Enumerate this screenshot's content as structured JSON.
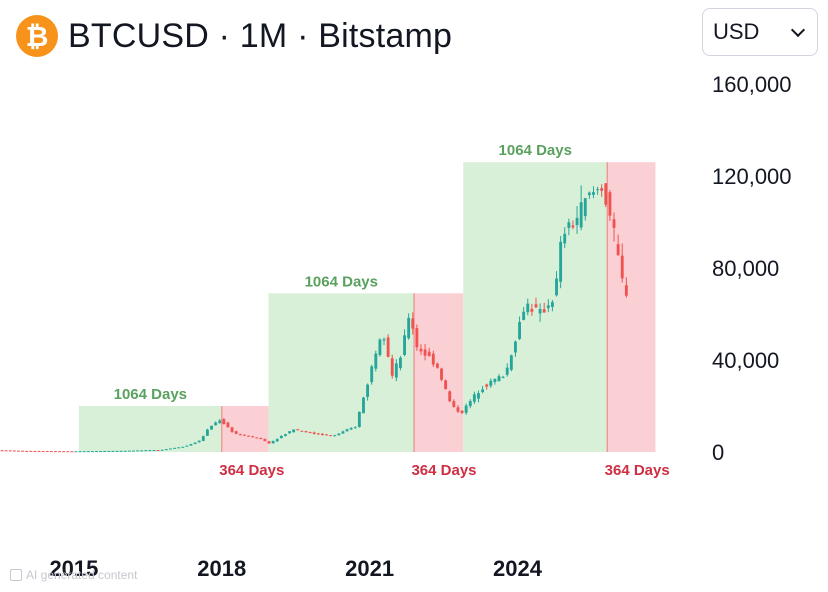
{
  "header": {
    "logo_glyph": "₿",
    "title": "BTCUSD · 1M · Bitstamp",
    "logo_color": "#f7931a"
  },
  "currency_select": {
    "value": "USD"
  },
  "watermark": {
    "text": "AI generated content"
  },
  "colors": {
    "up": "#26a69a",
    "down": "#ef5350",
    "bull_zone": "#d8f0d8",
    "bear_zone": "#fbd0d5",
    "bull_text": "#5aa15f",
    "bear_text": "#cf2e43"
  },
  "chart_data": {
    "type": "candlestick",
    "title": "BTCUSD · 1M · Bitstamp",
    "ylim": [
      0,
      160000
    ],
    "y_ticks": [
      0,
      40000,
      80000,
      120000,
      160000
    ],
    "y_tick_labels": [
      "0",
      "40,000",
      "80,000",
      "120,000",
      "160,000"
    ],
    "y_axis_position": "right",
    "x_range": [
      2013.5,
      2027.5
    ],
    "x_ticks": [
      2015,
      2018,
      2021,
      2024
    ],
    "x_tick_labels": [
      "2015",
      "2018",
      "2021",
      "2024"
    ],
    "grid": false,
    "zones": [
      {
        "type": "bull",
        "x_start": 2015.1,
        "x_end": 2018.0,
        "y_top": 20000,
        "label": "1064 Days"
      },
      {
        "type": "bear",
        "x_start": 2018.0,
        "x_end": 2018.95,
        "y_top": 20000,
        "label": "364 Days"
      },
      {
        "type": "bull",
        "x_start": 2018.95,
        "x_end": 2021.9,
        "y_top": 69000,
        "label": "1064 Days"
      },
      {
        "type": "bear",
        "x_start": 2021.9,
        "x_end": 2022.9,
        "y_top": 69000,
        "label": "364 Days"
      },
      {
        "type": "bull",
        "x_start": 2022.9,
        "x_end": 2025.82,
        "y_top": 126000,
        "label": "1064 Days"
      },
      {
        "type": "bear",
        "x_start": 2025.82,
        "x_end": 2026.8,
        "y_top": 126000,
        "label": "364 Days"
      }
    ],
    "price_path": {
      "x": [
        2013.5,
        2014.0,
        2015.0,
        2016.0,
        2016.8,
        2017.3,
        2017.6,
        2017.8,
        2018.0,
        2018.3,
        2018.8,
        2019.0,
        2019.5,
        2019.9,
        2020.3,
        2020.75,
        2021.0,
        2021.3,
        2021.5,
        2021.7,
        2021.85,
        2022.0,
        2022.4,
        2022.7,
        2022.9,
        2023.3,
        2023.8,
        2024.2,
        2024.5,
        2024.8,
        2024.95,
        2025.2,
        2025.45,
        2025.75,
        2025.9,
        2026.05,
        2026.2
      ],
      "y": [
        800,
        500,
        300,
        500,
        900,
        2500,
        5000,
        11000,
        14000,
        8000,
        6000,
        3800,
        10000,
        8000,
        7000,
        11000,
        30000,
        55000,
        33000,
        43000,
        61000,
        46000,
        38000,
        20000,
        17000,
        28000,
        34000,
        65000,
        60000,
        68000,
        95000,
        100000,
        110000,
        116000,
        105000,
        88000,
        70000
      ]
    }
  },
  "annotations": {
    "bull_labels": [
      "1064 Days",
      "1064 Days",
      "1064 Days"
    ],
    "bear_labels": [
      "364 Days",
      "364 Days",
      "364 Days"
    ]
  }
}
